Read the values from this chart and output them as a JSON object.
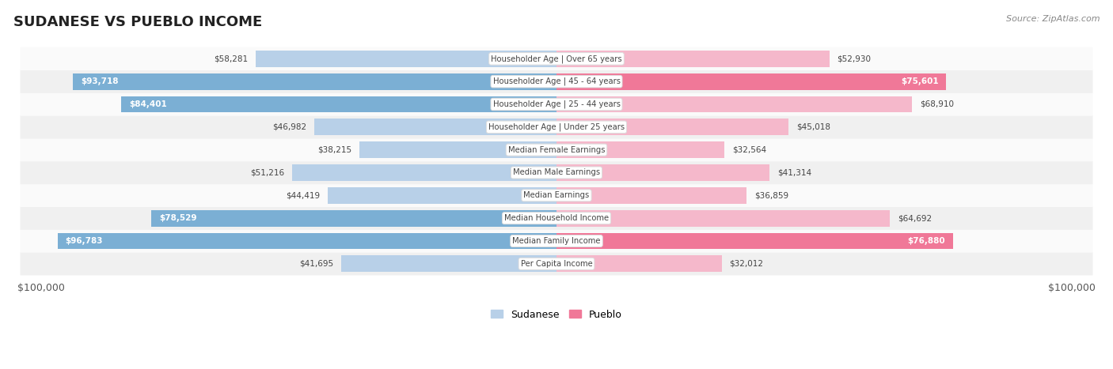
{
  "title": "SUDANESE VS PUEBLO INCOME",
  "source": "Source: ZipAtlas.com",
  "max_value": 100000,
  "categories": [
    "Per Capita Income",
    "Median Family Income",
    "Median Household Income",
    "Median Earnings",
    "Median Male Earnings",
    "Median Female Earnings",
    "Householder Age | Under 25 years",
    "Householder Age | 25 - 44 years",
    "Householder Age | 45 - 64 years",
    "Householder Age | Over 65 years"
  ],
  "sudanese": [
    41695,
    96783,
    78529,
    44419,
    51216,
    38215,
    46982,
    84401,
    93718,
    58281
  ],
  "pueblo": [
    32012,
    76880,
    64692,
    36859,
    41314,
    32564,
    45018,
    68910,
    75601,
    52930
  ],
  "sudanese_labels": [
    "$41,695",
    "$96,783",
    "$78,529",
    "$44,419",
    "$51,216",
    "$38,215",
    "$46,982",
    "$84,401",
    "$93,718",
    "$58,281"
  ],
  "pueblo_labels": [
    "$32,012",
    "$76,880",
    "$64,692",
    "$36,859",
    "$41,314",
    "$32,564",
    "$45,018",
    "$68,910",
    "$75,601",
    "$52,930"
  ],
  "color_sudanese_light": "#b8d0e8",
  "color_sudanese_dark": "#7bafd4",
  "color_pueblo_light": "#f5b8cb",
  "color_pueblo_dark": "#f07898",
  "row_bg_odd": "#f0f0f0",
  "row_bg_even": "#fafafa",
  "bar_height": 0.72,
  "title_fontsize": 13,
  "label_fontsize": 8,
  "tick_fontsize": 9,
  "legend_fontsize": 9,
  "threshold_dark": 70000
}
